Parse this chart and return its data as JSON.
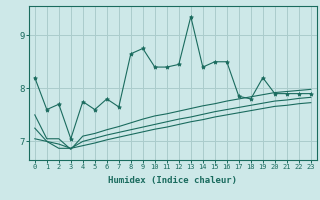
{
  "xlabel": "Humidex (Indice chaleur)",
  "background_color": "#cde8e8",
  "line_color": "#1a6b5e",
  "grid_color": "#aacccc",
  "xlim": [
    -0.5,
    23.5
  ],
  "ylim": [
    6.65,
    9.55
  ],
  "yticks": [
    7,
    8,
    9
  ],
  "xticks": [
    0,
    1,
    2,
    3,
    4,
    5,
    6,
    7,
    8,
    9,
    10,
    11,
    12,
    13,
    14,
    15,
    16,
    17,
    18,
    19,
    20,
    21,
    22,
    23
  ],
  "main_line": [
    8.2,
    7.6,
    7.7,
    7.05,
    7.75,
    7.6,
    7.8,
    7.65,
    8.65,
    8.75,
    8.4,
    8.4,
    8.45,
    9.35,
    8.4,
    8.5,
    8.5,
    7.85,
    7.8,
    8.2,
    7.9,
    7.9,
    7.9,
    7.9
  ],
  "main_line_markers": true,
  "line2": [
    7.5,
    7.05,
    7.05,
    6.85,
    7.1,
    7.15,
    7.22,
    7.28,
    7.35,
    7.42,
    7.48,
    7.52,
    7.57,
    7.62,
    7.67,
    7.71,
    7.76,
    7.8,
    7.84,
    7.88,
    7.92,
    7.94,
    7.96,
    7.98
  ],
  "line3": [
    7.25,
    7.0,
    6.87,
    6.87,
    7.0,
    7.06,
    7.12,
    7.17,
    7.22,
    7.27,
    7.32,
    7.37,
    7.42,
    7.46,
    7.51,
    7.56,
    7.6,
    7.64,
    7.68,
    7.72,
    7.76,
    7.78,
    7.81,
    7.83
  ],
  "line4": [
    7.05,
    7.0,
    6.95,
    6.87,
    6.92,
    6.97,
    7.03,
    7.08,
    7.13,
    7.18,
    7.23,
    7.27,
    7.32,
    7.37,
    7.41,
    7.46,
    7.5,
    7.54,
    7.58,
    7.62,
    7.66,
    7.68,
    7.71,
    7.73
  ]
}
